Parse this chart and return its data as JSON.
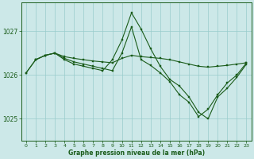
{
  "title": "Graphe pression niveau de la mer (hPa)",
  "bg_color": "#cce8e8",
  "grid_color": "#99cccc",
  "line_color": "#1a5c1a",
  "xlim": [
    -0.5,
    23.5
  ],
  "ylim": [
    1024.5,
    1027.65
  ],
  "yticks": [
    1025,
    1026,
    1027
  ],
  "xticks": [
    0,
    1,
    2,
    3,
    4,
    5,
    6,
    7,
    8,
    9,
    10,
    11,
    12,
    13,
    14,
    15,
    16,
    17,
    18,
    19,
    20,
    21,
    22,
    23
  ],
  "series": [
    {
      "x": [
        0,
        1,
        2,
        3,
        4,
        5,
        6,
        7,
        8,
        9,
        10,
        11,
        12,
        13,
        14,
        15,
        16,
        17,
        18,
        19,
        20,
        21,
        22,
        23
      ],
      "y": [
        1026.05,
        1026.35,
        1026.45,
        1026.5,
        1026.42,
        1026.38,
        1026.35,
        1026.32,
        1026.3,
        1026.28,
        1026.38,
        1026.45,
        1026.42,
        1026.4,
        1026.38,
        1026.35,
        1026.3,
        1026.25,
        1026.2,
        1026.18,
        1026.2,
        1026.22,
        1026.25,
        1026.28
      ]
    },
    {
      "x": [
        0,
        1,
        2,
        3,
        4,
        5,
        6,
        7,
        8,
        9,
        10,
        11,
        12,
        13,
        14,
        15,
        16,
        17,
        18,
        19,
        20,
        21,
        22,
        23
      ],
      "y": [
        1026.05,
        1026.35,
        1026.45,
        1026.5,
        1026.35,
        1026.25,
        1026.2,
        1026.15,
        1026.1,
        1026.35,
        1026.8,
        1027.42,
        1027.05,
        1026.6,
        1026.2,
        1025.9,
        1025.75,
        1025.5,
        1025.15,
        1025.0,
        1025.5,
        1025.7,
        1025.95,
        1026.25
      ]
    },
    {
      "x": [
        1,
        2,
        3,
        4,
        5,
        6,
        7,
        8,
        9,
        10,
        11,
        12,
        13,
        14,
        15,
        16,
        17,
        18,
        19,
        20,
        21,
        22,
        23
      ],
      "y": [
        1026.35,
        1026.45,
        1026.5,
        1026.38,
        1026.3,
        1026.25,
        1026.2,
        1026.15,
        1026.1,
        1026.5,
        1027.1,
        1026.35,
        1026.22,
        1026.05,
        1025.85,
        1025.55,
        1025.38,
        1025.05,
        1025.22,
        1025.55,
        1025.82,
        1026.0,
        1026.28
      ]
    }
  ]
}
